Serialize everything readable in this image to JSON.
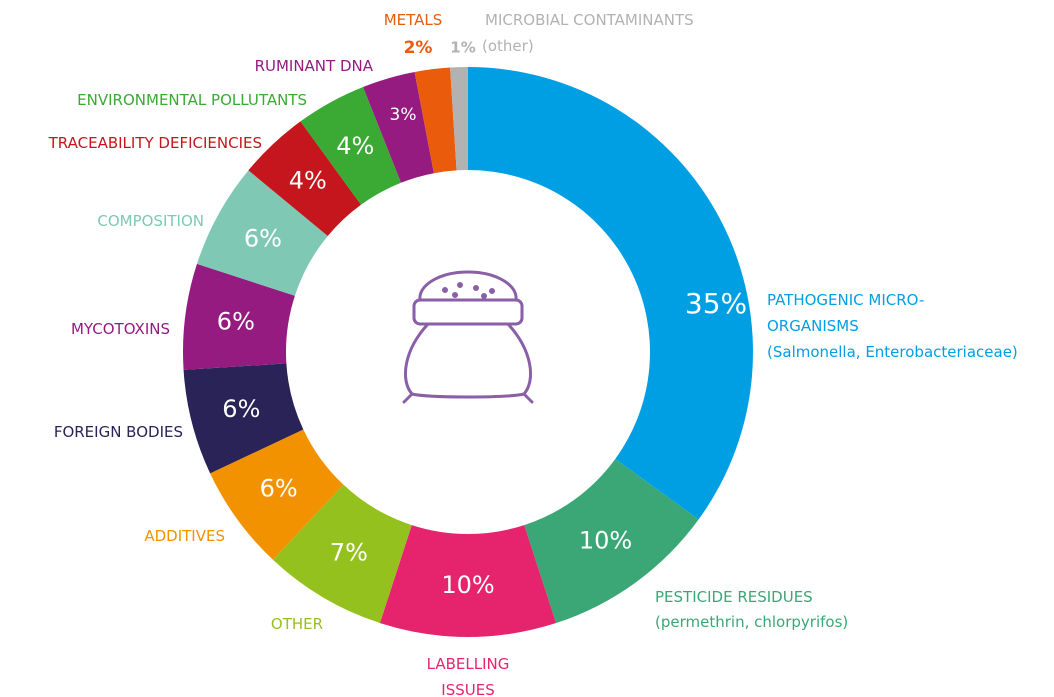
{
  "chart_data": {
    "type": "pie",
    "donut": true,
    "categories": [
      "PATHOGENIC MICRO-ORGANISMS",
      "PESTICIDE RESIDUES",
      "LABELLING ISSUES",
      "OTHER",
      "ADDITIVES",
      "FOREIGN BODIES",
      "MYCOTOXINS",
      "COMPOSITION",
      "TRACEABILITY DEFICIENCIES",
      "ENVIRONMENTAL POLLUTANTS",
      "RUMINANT DNA",
      "METALS",
      "MICROBIAL CONTAMINANTS"
    ],
    "notes": [
      "(Salmonella, Enterobacteriaceae)",
      "(permethrin, chlorpyrifos)",
      null,
      null,
      null,
      null,
      null,
      null,
      null,
      null,
      null,
      null,
      "(other)"
    ],
    "values": [
      35,
      10,
      10,
      7,
      6,
      6,
      6,
      6,
      4,
      4,
      3,
      2,
      1
    ],
    "value_labels": [
      "35%",
      "10%",
      "10%",
      "7%",
      "6%",
      "6%",
      "6%",
      "6%",
      "4%",
      "4%",
      "3%",
      "2%",
      "1%"
    ],
    "colors": [
      "#009fe3",
      "#3ba776",
      "#e6246e",
      "#95c11f",
      "#f39200",
      "#2a2357",
      "#951b81",
      "#7fc8b4",
      "#c4161c",
      "#3aaa35",
      "#951b81",
      "#ea5b0c",
      "#b2b2b2"
    ]
  }
}
